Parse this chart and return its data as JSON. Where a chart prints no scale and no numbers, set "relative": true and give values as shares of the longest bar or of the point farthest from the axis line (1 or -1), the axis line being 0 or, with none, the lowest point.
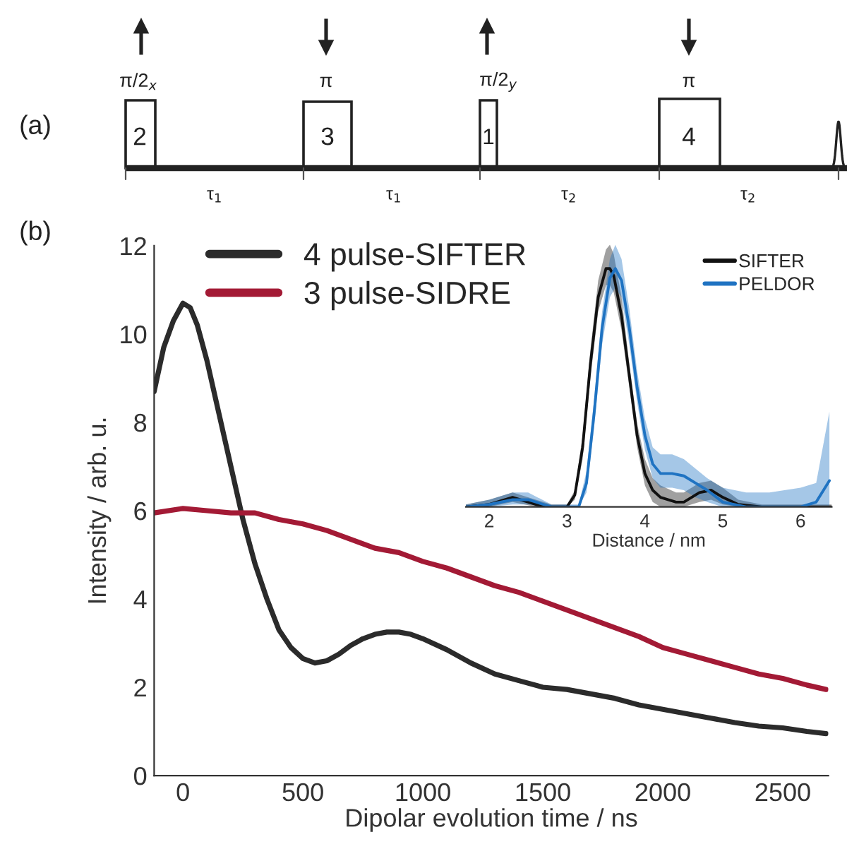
{
  "chart_data": [
    {
      "type": "other",
      "annotations": [
        "(a)",
        "π/2$_{x}$",
        "π",
        "π/2$_{y}$",
        "π",
        "2",
        "3",
        "1",
        "4",
        "τ$_{1}$",
        "τ$_{1}$",
        "τ$_{2}$",
        "τ$_{2}$"
      ]
    },
    {
      "type": "line",
      "xlabel": "Dipolar evolution time / ns",
      "ylabel": "Intensity / arb. u.",
      "annotations": [
        "(b)"
      ],
      "xlim": [
        -120,
        2690
      ],
      "ylim": [
        0,
        12
      ],
      "xticks": [
        0,
        500,
        1000,
        1500,
        2000,
        2500
      ],
      "yticks": [
        0,
        2,
        4,
        6,
        8,
        10,
        12
      ],
      "legend": "top",
      "grid": false,
      "series": [
        {
          "name": "4 pulse-SIFTER",
          "color": "#2b2b2b",
          "x": [
            -120,
            -80,
            -40,
            0,
            30,
            60,
            100,
            150,
            200,
            250,
            300,
            350,
            400,
            450,
            500,
            550,
            600,
            650,
            700,
            750,
            800,
            850,
            900,
            950,
            1000,
            1100,
            1200,
            1300,
            1400,
            1500,
            1600,
            1700,
            1800,
            1900,
            2000,
            2100,
            2200,
            2300,
            2400,
            2500,
            2600,
            2680
          ],
          "values": [
            8.7,
            9.7,
            10.3,
            10.7,
            10.6,
            10.2,
            9.4,
            8.2,
            7.0,
            5.8,
            4.8,
            4.0,
            3.3,
            2.9,
            2.65,
            2.55,
            2.6,
            2.75,
            2.95,
            3.1,
            3.2,
            3.25,
            3.25,
            3.2,
            3.1,
            2.85,
            2.55,
            2.3,
            2.15,
            2.0,
            1.95,
            1.85,
            1.75,
            1.6,
            1.5,
            1.4,
            1.3,
            1.2,
            1.12,
            1.08,
            1.0,
            0.95
          ]
        },
        {
          "name": "3 pulse-SIDRE",
          "color": "#a31a35",
          "x": [
            -120,
            0,
            100,
            200,
            300,
            400,
            500,
            600,
            700,
            800,
            900,
            1000,
            1100,
            1200,
            1300,
            1400,
            1500,
            1600,
            1700,
            1800,
            1900,
            2000,
            2100,
            2200,
            2300,
            2400,
            2500,
            2600,
            2680
          ],
          "values": [
            5.95,
            6.05,
            6.0,
            5.95,
            5.95,
            5.8,
            5.7,
            5.55,
            5.35,
            5.15,
            5.05,
            4.85,
            4.7,
            4.5,
            4.3,
            4.15,
            3.95,
            3.75,
            3.55,
            3.35,
            3.15,
            2.9,
            2.75,
            2.6,
            2.45,
            2.3,
            2.2,
            2.05,
            1.95
          ]
        }
      ]
    },
    {
      "type": "line",
      "relative": true,
      "xlabel": "Distance / nm",
      "xlim": [
        1.7,
        6.4
      ],
      "xticks": [
        2,
        3,
        4,
        5,
        6
      ],
      "legend": "top right",
      "grid": false,
      "tick_labels": "x",
      "series": [
        {
          "name": "SIFTER",
          "color": "#111111",
          "x": [
            1.7,
            2.0,
            2.3,
            2.6,
            2.8,
            3.0,
            3.1,
            3.2,
            3.3,
            3.4,
            3.5,
            3.55,
            3.6,
            3.7,
            3.8,
            3.9,
            4.0,
            4.1,
            4.2,
            4.4,
            4.5,
            4.7,
            4.85,
            5.0,
            5.2,
            5.5,
            6.0,
            6.4
          ],
          "values": [
            0,
            0.01,
            0.04,
            0.01,
            0,
            0,
            0.05,
            0.25,
            0.6,
            0.88,
            1.0,
            1.0,
            0.97,
            0.8,
            0.55,
            0.3,
            0.14,
            0.07,
            0.04,
            0.02,
            0.02,
            0.06,
            0.07,
            0.04,
            0.01,
            0,
            0,
            0
          ],
          "lower": [
            0,
            0,
            0.02,
            0,
            0,
            0,
            0.03,
            0.2,
            0.54,
            0.82,
            0.93,
            0.93,
            0.9,
            0.74,
            0.5,
            0.25,
            0.09,
            0.02,
            0,
            0,
            0,
            0.02,
            0.03,
            0.01,
            0,
            0,
            0,
            0
          ],
          "upper": [
            0.01,
            0.03,
            0.06,
            0.03,
            0.01,
            0.01,
            0.07,
            0.3,
            0.66,
            0.95,
            1.08,
            1.1,
            1.06,
            0.88,
            0.6,
            0.35,
            0.2,
            0.12,
            0.09,
            0.06,
            0.06,
            0.1,
            0.11,
            0.08,
            0.03,
            0.01,
            0.01,
            0.01
          ]
        },
        {
          "name": "PELDOR",
          "color": "#1f73c2",
          "x": [
            1.7,
            2.0,
            2.3,
            2.5,
            2.8,
            3.0,
            3.15,
            3.25,
            3.35,
            3.45,
            3.55,
            3.62,
            3.7,
            3.8,
            3.9,
            4.0,
            4.1,
            4.2,
            4.35,
            4.5,
            4.65,
            4.8,
            5.0,
            5.3,
            5.6,
            6.0,
            6.2,
            6.37
          ],
          "values": [
            0,
            0.01,
            0.03,
            0.03,
            0,
            0,
            0,
            0.1,
            0.4,
            0.75,
            0.96,
            1.0,
            0.95,
            0.75,
            0.5,
            0.3,
            0.18,
            0.14,
            0.14,
            0.13,
            0.1,
            0.07,
            0.02,
            0,
            0,
            0,
            0.02,
            0.11
          ],
          "lower": [
            0,
            0,
            0.01,
            0.01,
            0,
            0,
            0,
            0.06,
            0.34,
            0.68,
            0.88,
            0.92,
            0.88,
            0.68,
            0.44,
            0.24,
            0.12,
            0.08,
            0.08,
            0.07,
            0.04,
            0.02,
            0,
            0,
            0,
            0,
            0,
            0
          ],
          "upper": [
            0.01,
            0.03,
            0.06,
            0.06,
            0.01,
            0.01,
            0.01,
            0.15,
            0.46,
            0.82,
            1.04,
            1.1,
            1.04,
            0.83,
            0.57,
            0.37,
            0.25,
            0.22,
            0.22,
            0.2,
            0.16,
            0.12,
            0.08,
            0.06,
            0.06,
            0.08,
            0.1,
            0.4
          ]
        }
      ]
    }
  ]
}
